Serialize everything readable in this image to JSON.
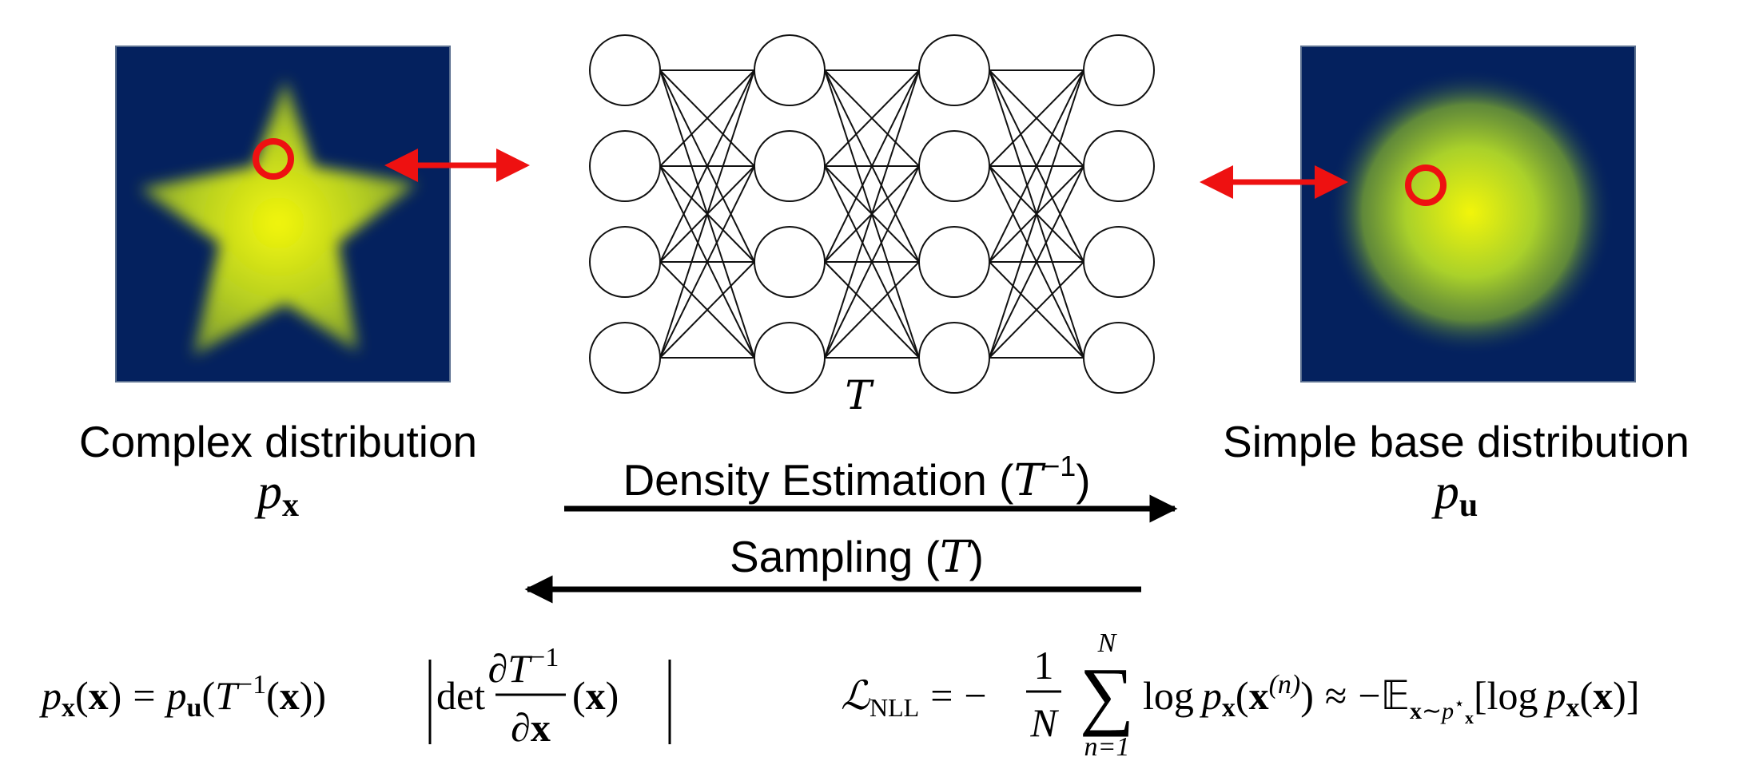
{
  "colors": {
    "panel_background": "#04215e",
    "density_peak": "#f2f50a",
    "density_edge": "#7fa22a",
    "marker_red": "#ee1111",
    "network_stroke": "#111111",
    "text": "#000000"
  },
  "network": {
    "layers": 4,
    "neurons_per_layer": 4,
    "connectivity": "fully-connected",
    "label": "T"
  },
  "left_panel": {
    "title": "Complex distribution",
    "symbol_main": "p",
    "symbol_sub": "x",
    "shape": "star"
  },
  "right_panel": {
    "title": "Simple base distribution",
    "symbol_main": "p",
    "symbol_sub": "u",
    "shape": "gaussian"
  },
  "arrows": {
    "density_estimation": {
      "label": "Density Estimation",
      "op": "T",
      "sup": "−1",
      "direction": "right"
    },
    "sampling": {
      "label": "Sampling",
      "op": "T",
      "direction": "left"
    }
  },
  "equations": {
    "change_of_variables": "p_x(x) = p_u(T^{-1}(x)) |det ∂T^{-1}/∂x (x)|",
    "nll": "L_NLL = −(1/N) Σ_{n=1}^{N} log p_x(x^{(n)}) ≈ −E_{x∼p*_x}[log p_x(x)]",
    "tokens": {
      "p": "p",
      "x": "x",
      "u": "u",
      "T": "T",
      "neg1": "−1",
      "det": "det",
      "partial": "∂",
      "lparen": "(",
      "rparen": ")",
      "eq": "=",
      "approx": "≈",
      "minus": "−",
      "one": "1",
      "N": "N",
      "sigma": "∑",
      "n_eq_1": "n=1",
      "log": "log",
      "n_paren": "(n)",
      "L": "ℒ",
      "NLL": "NLL",
      "E": "𝔼",
      "sim": "∼",
      "star": "⋆",
      "lbrack": "[",
      "rbrack": "]"
    }
  }
}
